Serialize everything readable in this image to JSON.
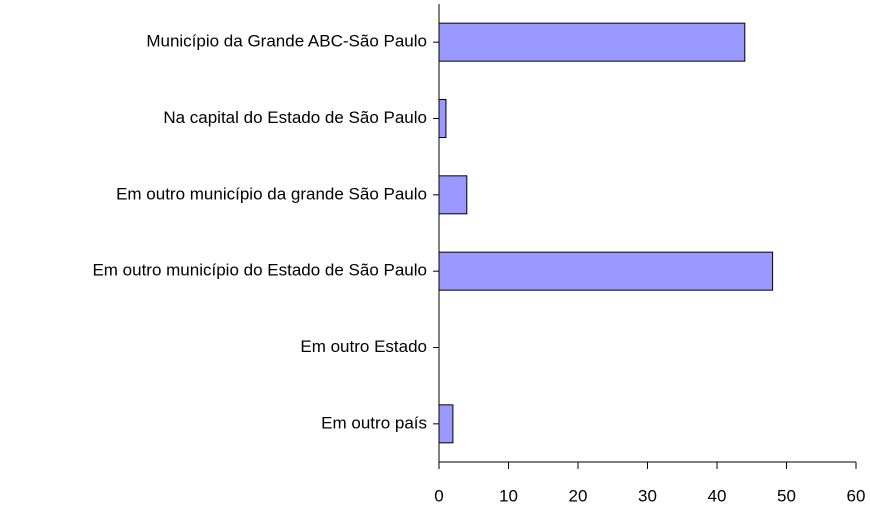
{
  "chart_data": {
    "type": "bar",
    "orientation": "horizontal",
    "categories": [
      "Município da Grande ABC-São Paulo",
      "Na capital do Estado de São Paulo",
      "Em outro município da grande São Paulo",
      "Em outro município do Estado de São Paulo",
      "Em outro Estado",
      "Em outro país"
    ],
    "values": [
      44,
      1,
      4,
      48,
      0,
      2
    ],
    "color": "#9999ff",
    "xlim": [
      0,
      60
    ],
    "xticks": [
      0,
      10,
      20,
      30,
      40,
      50,
      60
    ],
    "grid": false
  }
}
